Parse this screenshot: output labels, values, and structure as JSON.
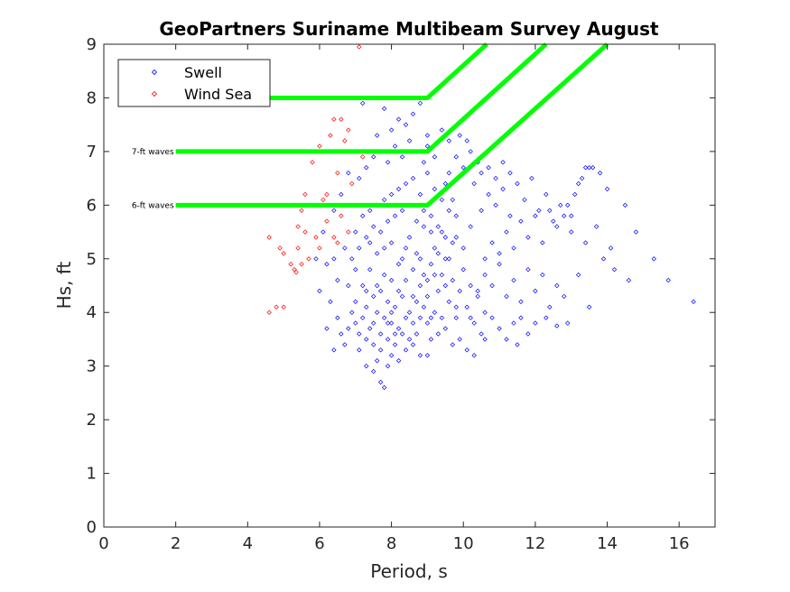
{
  "chart_data": {
    "type": "scatter",
    "title": "GeoPartners Suriname Multibeam Survey August",
    "xlabel": "Period, s",
    "ylabel": "Hs, ft",
    "xlim": [
      0,
      17
    ],
    "ylim": [
      0,
      9
    ],
    "xticks": [
      "0",
      "2",
      "4",
      "6",
      "8",
      "10",
      "12",
      "14",
      "16"
    ],
    "yticks": [
      "0",
      "1",
      "2",
      "3",
      "4",
      "5",
      "6",
      "7",
      "8",
      "9"
    ],
    "grid": false,
    "legend_position": "top-left",
    "series": [
      {
        "name": "Swell",
        "marker": "diamond",
        "color": "#0000ff",
        "points": [
          [
            7.1,
            3.3
          ],
          [
            7.3,
            3.0
          ],
          [
            7.5,
            2.9
          ],
          [
            7.6,
            3.1
          ],
          [
            7.7,
            2.7
          ],
          [
            7.8,
            2.6
          ],
          [
            7.9,
            3.0
          ],
          [
            8.0,
            3.2
          ],
          [
            8.2,
            3.1
          ],
          [
            8.4,
            3.3
          ],
          [
            8.6,
            3.4
          ],
          [
            8.8,
            3.2
          ],
          [
            9.0,
            3.2
          ],
          [
            9.1,
            3.5
          ],
          [
            6.6,
            3.6
          ],
          [
            6.8,
            3.7
          ],
          [
            6.9,
            4.0
          ],
          [
            7.0,
            3.8
          ],
          [
            7.0,
            4.2
          ],
          [
            7.1,
            3.6
          ],
          [
            7.2,
            4.5
          ],
          [
            7.2,
            3.9
          ],
          [
            7.3,
            4.1
          ],
          [
            7.3,
            3.5
          ],
          [
            7.4,
            4.8
          ],
          [
            7.4,
            3.7
          ],
          [
            7.5,
            4.3
          ],
          [
            7.5,
            3.4
          ],
          [
            7.6,
            4.0
          ],
          [
            7.6,
            5.1
          ],
          [
            7.7,
            3.6
          ],
          [
            7.7,
            4.4
          ],
          [
            7.8,
            3.9
          ],
          [
            7.8,
            4.7
          ],
          [
            7.9,
            3.5
          ],
          [
            7.9,
            4.2
          ],
          [
            8.0,
            3.8
          ],
          [
            8.0,
            4.6
          ],
          [
            8.0,
            5.3
          ],
          [
            8.1,
            3.6
          ],
          [
            8.1,
            4.1
          ],
          [
            8.2,
            4.9
          ],
          [
            8.2,
            3.7
          ],
          [
            8.3,
            4.3
          ],
          [
            8.3,
            5.0
          ],
          [
            8.4,
            3.9
          ],
          [
            8.4,
            4.6
          ],
          [
            8.5,
            4.0
          ],
          [
            8.5,
            5.4
          ],
          [
            8.6,
            3.8
          ],
          [
            8.6,
            4.8
          ],
          [
            8.7,
            4.2
          ],
          [
            8.7,
            5.1
          ],
          [
            8.8,
            3.9
          ],
          [
            8.8,
            4.5
          ],
          [
            8.9,
            4.1
          ],
          [
            8.9,
            5.6
          ],
          [
            9.0,
            4.3
          ],
          [
            9.0,
            3.8
          ],
          [
            9.1,
            4.9
          ],
          [
            9.2,
            4.0
          ],
          [
            9.2,
            5.2
          ],
          [
            9.3,
            4.4
          ],
          [
            9.4,
            3.9
          ],
          [
            9.4,
            4.7
          ],
          [
            9.5,
            5.0
          ],
          [
            9.6,
            4.2
          ],
          [
            9.7,
            4.6
          ],
          [
            9.8,
            3.9
          ],
          [
            9.9,
            4.4
          ],
          [
            10.0,
            4.8
          ],
          [
            10.1,
            4.1
          ],
          [
            10.2,
            4.5
          ],
          [
            10.3,
            3.8
          ],
          [
            10.4,
            4.3
          ],
          [
            6.9,
            5.0
          ],
          [
            7.0,
            5.5
          ],
          [
            7.1,
            5.2
          ],
          [
            7.2,
            5.8
          ],
          [
            7.3,
            5.4
          ],
          [
            7.4,
            5.9
          ],
          [
            7.5,
            5.6
          ],
          [
            7.6,
            6.0
          ],
          [
            7.7,
            5.5
          ],
          [
            7.8,
            6.1
          ],
          [
            7.9,
            5.7
          ],
          [
            8.0,
            6.2
          ],
          [
            8.1,
            5.8
          ],
          [
            8.2,
            6.3
          ],
          [
            8.3,
            5.9
          ],
          [
            8.4,
            6.4
          ],
          [
            8.5,
            6.0
          ],
          [
            8.6,
            6.5
          ],
          [
            8.7,
            5.7
          ],
          [
            8.8,
            6.2
          ],
          [
            8.9,
            5.9
          ],
          [
            9.0,
            6.6
          ],
          [
            9.1,
            5.8
          ],
          [
            9.2,
            6.3
          ],
          [
            9.3,
            5.6
          ],
          [
            9.4,
            6.1
          ],
          [
            9.5,
            5.4
          ],
          [
            9.6,
            5.9
          ],
          [
            9.7,
            5.3
          ],
          [
            9.8,
            5.8
          ],
          [
            7.1,
            6.5
          ],
          [
            7.3,
            6.7
          ],
          [
            7.5,
            6.9
          ],
          [
            7.7,
            7.0
          ],
          [
            7.9,
            6.8
          ],
          [
            8.1,
            7.1
          ],
          [
            8.3,
            6.9
          ],
          [
            8.5,
            7.2
          ],
          [
            8.7,
            7.0
          ],
          [
            8.9,
            6.8
          ],
          [
            9.0,
            7.1
          ],
          [
            9.2,
            6.9
          ],
          [
            7.6,
            7.3
          ],
          [
            8.0,
            7.4
          ],
          [
            8.4,
            7.5
          ],
          [
            7.8,
            7.8
          ],
          [
            8.2,
            7.6
          ],
          [
            8.6,
            7.7
          ],
          [
            9.0,
            7.3
          ],
          [
            9.4,
            7.4
          ],
          [
            9.6,
            7.2
          ],
          [
            8.8,
            7.9
          ],
          [
            7.2,
            7.9
          ],
          [
            7.0,
            4.8
          ],
          [
            6.8,
            4.5
          ],
          [
            6.7,
            5.2
          ],
          [
            6.5,
            4.6
          ],
          [
            6.4,
            5.0
          ],
          [
            6.3,
            4.2
          ],
          [
            6.2,
            4.9
          ],
          [
            6.1,
            5.5
          ],
          [
            6.4,
            5.9
          ],
          [
            6.6,
            6.2
          ],
          [
            6.8,
            6.6
          ],
          [
            7.0,
            7.0
          ],
          [
            6.5,
            3.9
          ],
          [
            6.2,
            3.7
          ],
          [
            6.0,
            4.4
          ],
          [
            5.9,
            5.0
          ],
          [
            6.7,
            3.4
          ],
          [
            6.4,
            3.3
          ],
          [
            9.1,
            3.9
          ],
          [
            9.3,
            3.6
          ],
          [
            9.5,
            3.7
          ],
          [
            9.7,
            3.4
          ],
          [
            9.9,
            3.5
          ],
          [
            10.1,
            3.3
          ],
          [
            10.3,
            3.2
          ],
          [
            10.5,
            3.6
          ],
          [
            10.6,
            4.0
          ],
          [
            10.8,
            3.9
          ],
          [
            11.0,
            3.7
          ],
          [
            11.2,
            3.5
          ],
          [
            11.4,
            3.8
          ],
          [
            11.6,
            3.9
          ],
          [
            10.6,
            5.0
          ],
          [
            10.8,
            5.3
          ],
          [
            11.0,
            5.1
          ],
          [
            11.2,
            5.5
          ],
          [
            11.4,
            5.2
          ],
          [
            11.6,
            5.7
          ],
          [
            11.8,
            5.4
          ],
          [
            12.0,
            5.8
          ],
          [
            12.2,
            5.3
          ],
          [
            12.4,
            5.9
          ],
          [
            12.6,
            5.6
          ],
          [
            12.8,
            5.8
          ],
          [
            13.0,
            5.5
          ],
          [
            10.5,
            5.9
          ],
          [
            10.7,
            6.2
          ],
          [
            10.9,
            6.0
          ],
          [
            11.1,
            6.3
          ],
          [
            11.3,
            5.8
          ],
          [
            11.5,
            6.4
          ],
          [
            11.7,
            6.1
          ],
          [
            11.9,
            6.5
          ],
          [
            12.1,
            5.9
          ],
          [
            12.3,
            6.2
          ],
          [
            12.5,
            5.7
          ],
          [
            12.7,
            6.0
          ],
          [
            10.4,
            4.4
          ],
          [
            10.6,
            4.7
          ],
          [
            10.8,
            4.5
          ],
          [
            11.0,
            4.9
          ],
          [
            11.2,
            4.3
          ],
          [
            11.4,
            4.6
          ],
          [
            11.6,
            4.2
          ],
          [
            11.8,
            4.8
          ],
          [
            12.0,
            4.4
          ],
          [
            12.2,
            4.7
          ],
          [
            12.4,
            4.1
          ],
          [
            12.6,
            4.5
          ],
          [
            12.8,
            4.3
          ],
          [
            12.0,
            3.8
          ],
          [
            12.3,
            3.9
          ],
          [
            12.6,
            3.75
          ],
          [
            12.9,
            3.8
          ],
          [
            11.8,
            3.6
          ],
          [
            11.5,
            3.4
          ],
          [
            13.0,
            5.8
          ],
          [
            13.2,
            6.4
          ],
          [
            13.4,
            6.7
          ],
          [
            13.5,
            6.7
          ],
          [
            13.6,
            6.7
          ],
          [
            13.8,
            6.6
          ],
          [
            13.1,
            6.2
          ],
          [
            12.9,
            6.0
          ],
          [
            13.3,
            6.5
          ],
          [
            14.0,
            6.3
          ],
          [
            14.5,
            6.0
          ],
          [
            14.8,
            5.5
          ],
          [
            14.2,
            4.8
          ],
          [
            14.6,
            4.6
          ],
          [
            14.1,
            5.2
          ],
          [
            13.7,
            5.6
          ],
          [
            13.9,
            5.0
          ],
          [
            15.3,
            5.0
          ],
          [
            15.7,
            4.6
          ],
          [
            16.4,
            4.2
          ],
          [
            13.2,
            4.7
          ],
          [
            13.5,
            4.1
          ],
          [
            13.4,
            5.3
          ],
          [
            9.6,
            6.6
          ],
          [
            9.8,
            6.9
          ],
          [
            10.0,
            6.7
          ],
          [
            10.2,
            7.0
          ],
          [
            10.4,
            6.8
          ],
          [
            9.9,
            7.3
          ],
          [
            10.1,
            7.2
          ],
          [
            9.5,
            6.4
          ],
          [
            9.7,
            6.1
          ],
          [
            10.3,
            6.4
          ],
          [
            10.5,
            6.6
          ],
          [
            10.7,
            6.7
          ],
          [
            10.9,
            6.5
          ],
          [
            11.1,
            6.8
          ],
          [
            11.3,
            6.6
          ],
          [
            10.6,
            3.5
          ],
          [
            10.2,
            3.9
          ],
          [
            9.8,
            4.1
          ],
          [
            9.5,
            4.5
          ],
          [
            9.3,
            5.1
          ],
          [
            9.1,
            5.5
          ],
          [
            8.9,
            4.7
          ],
          [
            8.7,
            3.6
          ],
          [
            8.5,
            3.5
          ],
          [
            8.3,
            3.6
          ],
          [
            8.1,
            3.4
          ],
          [
            7.9,
            3.8
          ],
          [
            7.7,
            3.3
          ],
          [
            7.5,
            3.8
          ],
          [
            7.3,
            4.4
          ],
          [
            7.4,
            5.3
          ],
          [
            7.6,
            4.5
          ],
          [
            7.8,
            5.2
          ],
          [
            8.0,
            4.0
          ],
          [
            8.2,
            4.4
          ],
          [
            8.4,
            5.2
          ],
          [
            8.6,
            4.3
          ],
          [
            8.8,
            5.0
          ],
          [
            9.0,
            4.6
          ],
          [
            9.2,
            4.7
          ],
          [
            9.4,
            5.5
          ],
          [
            9.6,
            5.0
          ],
          [
            9.8,
            5.4
          ],
          [
            10.0,
            5.2
          ],
          [
            10.2,
            5.6
          ]
        ]
      },
      {
        "name": "Wind Sea",
        "marker": "diamond",
        "color": "#ff0000",
        "points": [
          [
            4.6,
            4.0
          ],
          [
            4.8,
            4.1
          ],
          [
            5.0,
            4.1
          ],
          [
            4.6,
            5.4
          ],
          [
            4.9,
            5.2
          ],
          [
            5.2,
            4.9
          ],
          [
            5.3,
            4.8
          ],
          [
            5.35,
            4.75
          ],
          [
            5.5,
            4.9
          ],
          [
            5.0,
            5.1
          ],
          [
            5.4,
            5.2
          ],
          [
            5.7,
            5.0
          ],
          [
            5.3,
            6.0
          ],
          [
            5.5,
            5.9
          ],
          [
            5.6,
            5.5
          ],
          [
            5.9,
            5.4
          ],
          [
            6.0,
            5.2
          ],
          [
            6.1,
            6.1
          ],
          [
            6.2,
            6.2
          ],
          [
            5.8,
            6.8
          ],
          [
            6.0,
            7.1
          ],
          [
            6.3,
            7.3
          ],
          [
            6.4,
            7.6
          ],
          [
            6.6,
            7.6
          ],
          [
            6.5,
            6.6
          ],
          [
            6.7,
            7.2
          ],
          [
            6.8,
            7.4
          ],
          [
            6.9,
            6.4
          ],
          [
            7.0,
            6.0
          ],
          [
            7.2,
            6.9
          ],
          [
            6.6,
            5.8
          ],
          [
            6.4,
            5.4
          ],
          [
            5.4,
            5.6
          ],
          [
            5.6,
            6.2
          ],
          [
            7.1,
            8.95
          ],
          [
            6.8,
            5.5
          ],
          [
            6.2,
            5.7
          ],
          [
            6.5,
            5.3
          ]
        ]
      }
    ],
    "threshold_lines": [
      {
        "color": "#00ff00",
        "points": [
          [
            2,
            8
          ],
          [
            9,
            8
          ],
          [
            10.65,
            9
          ]
        ],
        "label": ""
      },
      {
        "color": "#00ff00",
        "points": [
          [
            2,
            7
          ],
          [
            9,
            7
          ],
          [
            12.3,
            9
          ]
        ],
        "label": "7-ft waves"
      },
      {
        "color": "#00ff00",
        "points": [
          [
            2,
            6
          ],
          [
            9,
            6
          ],
          [
            14,
            9
          ]
        ],
        "label": "6-ft waves"
      }
    ]
  }
}
